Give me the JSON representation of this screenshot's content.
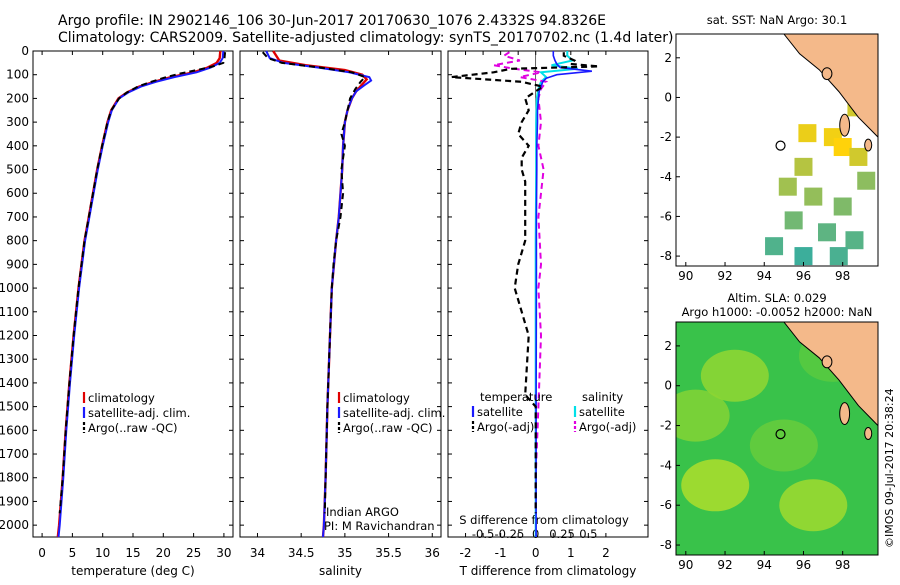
{
  "header": {
    "line1": "Argo profile: IN 2902146_106 30-Jun-2017 20170630_1076 2.4332S 94.8326E",
    "line2": "Climatology: CARS2009. Satellite-adjusted climatology: synTS_20170702.nc (1.4d later)"
  },
  "footer": {
    "imos": "©IMOS 09-Jul-2017 20:38:24"
  },
  "colors": {
    "climatology": "#e00000",
    "satellite": "#1a1aff",
    "argo": "#000000",
    "sal_satellite": "#00e0e8",
    "sal_argo": "#e000e0",
    "land": "#f4b98a"
  },
  "chart_data": [
    {
      "type": "line",
      "title": "",
      "xlabel": "temperature (deg C)",
      "ylabel": "",
      "xlim": [
        -1.5,
        31.5
      ],
      "ylim": [
        2050,
        0
      ],
      "xticks": [
        0,
        5,
        10,
        15,
        20,
        25,
        30
      ],
      "yticks": [
        0,
        100,
        200,
        300,
        400,
        500,
        600,
        700,
        800,
        900,
        1000,
        1100,
        1200,
        1300,
        1400,
        1500,
        1600,
        1700,
        1800,
        1900,
        2000
      ],
      "legend": {
        "position": "lower-right",
        "entries": [
          "climatology",
          "satellite-adj. clim.",
          "Argo(..raw -QC)"
        ]
      },
      "series": [
        {
          "name": "climatology",
          "depth": [
            0,
            30,
            50,
            70,
            90,
            110,
            130,
            150,
            175,
            200,
            250,
            300,
            400,
            500,
            600,
            700,
            800,
            900,
            1000,
            1200,
            1400,
            1600,
            1800,
            2000,
            2050
          ],
          "values": [
            29.4,
            29.3,
            28.8,
            27.3,
            25.0,
            21.3,
            18.5,
            16.0,
            14.0,
            12.6,
            11.4,
            10.8,
            9.9,
            9.1,
            8.4,
            7.7,
            7.0,
            6.5,
            6.0,
            5.2,
            4.5,
            3.9,
            3.4,
            2.8,
            2.6
          ]
        },
        {
          "name": "satellite-adj. clim.",
          "depth": [
            0,
            30,
            50,
            70,
            90,
            110,
            130,
            150,
            175,
            200,
            250,
            300,
            400,
            500,
            600,
            700,
            800,
            900,
            1000,
            1200,
            1400,
            1600,
            1800,
            2000,
            2050
          ],
          "values": [
            29.9,
            29.8,
            29.3,
            27.8,
            25.5,
            21.8,
            18.8,
            16.3,
            14.2,
            12.7,
            11.5,
            10.9,
            10.0,
            9.2,
            8.5,
            7.8,
            7.1,
            6.6,
            6.1,
            5.3,
            4.6,
            4.0,
            3.5,
            2.9,
            2.7
          ]
        },
        {
          "name": "Argo(..raw -QC)",
          "depth": [
            5,
            30,
            50,
            65,
            80,
            95,
            110,
            130,
            150,
            175,
            200,
            250,
            300,
            400,
            500,
            600,
            700,
            800,
            900,
            1000,
            1200,
            1400,
            1600,
            1800,
            1950
          ],
          "values": [
            30.2,
            30.1,
            29.9,
            28.2,
            25.6,
            22.8,
            20.5,
            18.0,
            15.8,
            14.0,
            12.7,
            11.4,
            10.8,
            9.9,
            9.1,
            8.4,
            7.7,
            7.0,
            6.5,
            6.0,
            5.2,
            4.5,
            3.9,
            3.4,
            2.9
          ]
        }
      ]
    },
    {
      "type": "line",
      "title": "",
      "xlabel": "salinity",
      "ylabel": "",
      "xlim": [
        33.8,
        36.1
      ],
      "ylim": [
        2050,
        0
      ],
      "xticks": [
        34,
        34.5,
        35,
        35.5,
        36
      ],
      "legend": {
        "position": "lower-right",
        "entries": [
          "climatology",
          "satellite-adj. clim.",
          "Argo(..raw -QC)"
        ]
      },
      "annotations": [
        "Indian ARGO",
        "PI: M Ravichandran"
      ],
      "series": [
        {
          "name": "climatology",
          "depth": [
            0,
            40,
            60,
            80,
            100,
            120,
            140,
            170,
            200,
            250,
            300,
            400,
            500,
            600,
            700,
            800,
            1000,
            1200,
            1500,
            1800,
            2000,
            2050
          ],
          "values": [
            34.18,
            34.25,
            34.55,
            35.0,
            35.2,
            35.25,
            35.2,
            35.13,
            35.08,
            35.03,
            35.0,
            34.98,
            34.97,
            34.95,
            34.93,
            34.9,
            34.85,
            34.83,
            34.8,
            34.78,
            34.76,
            34.75
          ]
        },
        {
          "name": "satellite-adj. clim.",
          "depth": [
            0,
            30,
            50,
            70,
            90,
            110,
            125,
            145,
            170,
            200,
            250,
            300,
            400,
            500,
            600,
            700,
            800,
            1000,
            1200,
            1500,
            1800,
            2000,
            2050
          ],
          "values": [
            34.1,
            34.14,
            34.3,
            34.7,
            35.05,
            35.28,
            35.3,
            35.22,
            35.13,
            35.08,
            35.03,
            35.0,
            34.98,
            34.97,
            34.95,
            34.93,
            34.9,
            34.85,
            34.83,
            34.8,
            34.78,
            34.76,
            34.75
          ]
        },
        {
          "name": "Argo(..raw -QC)",
          "depth": [
            5,
            30,
            50,
            70,
            90,
            110,
            130,
            160,
            200,
            250,
            300,
            350,
            400,
            500,
            600,
            700,
            800,
            900,
            1000,
            1200,
            1500,
            1800,
            1950
          ],
          "values": [
            34.06,
            34.12,
            34.28,
            34.72,
            35.08,
            35.23,
            35.18,
            35.12,
            35.06,
            35.03,
            35.0,
            34.96,
            35.0,
            34.96,
            34.98,
            34.95,
            34.9,
            34.87,
            34.85,
            34.83,
            34.8,
            34.78,
            34.77
          ]
        }
      ]
    },
    {
      "type": "line",
      "title": "",
      "xlabel": "T difference from climatology",
      "xlabel_top": "S difference from climatology",
      "xlim": [
        -2.5,
        3.2
      ],
      "xticks": [
        -2,
        -1.5,
        -1,
        -0.5,
        0,
        0.5,
        1,
        1.5,
        2
      ],
      "xtick_labels": [
        "-2",
        "",
        "-1",
        "",
        "0",
        "",
        "1",
        "",
        "2"
      ],
      "s_axis_ticks": [
        -0.5,
        -0.25,
        0,
        0.25,
        0.5
      ],
      "s_axis_labels": [
        "-0.5",
        "-0.25",
        "0",
        "0.25",
        "0.5"
      ],
      "ylim": [
        2050,
        0
      ],
      "legend": {
        "position": "lower",
        "temperature_title": "temperature",
        "salinity_title": "salinity",
        "temperature_entries": [
          "satellite",
          "Argo(-adj)"
        ],
        "salinity_entries": [
          "satellite",
          "Argo(-adj)"
        ]
      },
      "series": [
        {
          "name": "T satellite",
          "depth": [
            0,
            20,
            40,
            55,
            70,
            85,
            100,
            115,
            130,
            150,
            170,
            200,
            250,
            300,
            400,
            500,
            700,
            1000,
            1500,
            2050
          ],
          "values": [
            0.5,
            0.5,
            0.55,
            0.6,
            0.7,
            1.6,
            0.6,
            0.3,
            0.2,
            0.15,
            0.1,
            0.08,
            0.05,
            0.05,
            0.03,
            0.03,
            0.02,
            0.02,
            0.01,
            0.01
          ]
        },
        {
          "name": "T Argo(-adj)",
          "depth": [
            5,
            20,
            40,
            55,
            65,
            75,
            90,
            110,
            130,
            150,
            180,
            200,
            250,
            300,
            350,
            400,
            450,
            500,
            550,
            650,
            800,
            900,
            1000,
            1200,
            1450,
            1500,
            1700,
            1950
          ],
          "values": [
            0.8,
            0.8,
            1.1,
            1.0,
            1.8,
            -0.7,
            -1.2,
            -2.4,
            -0.4,
            0.2,
            -0.1,
            -0.3,
            -0.2,
            -0.4,
            -0.5,
            -0.2,
            -0.4,
            -0.4,
            -0.3,
            -0.3,
            -0.3,
            -0.5,
            -0.6,
            -0.2,
            -0.3,
            0.0,
            0.0,
            0.0
          ]
        },
        {
          "name": "S satellite",
          "depth": [
            0,
            20,
            40,
            60,
            75,
            90,
            110,
            130,
            160,
            200,
            300,
            500,
            800,
            1200,
            2050
          ],
          "values": [
            0.6,
            0.6,
            0.7,
            0.3,
            0.8,
            0.1,
            0.2,
            0.1,
            0.05,
            0.02,
            0.01,
            0.01,
            0.0,
            0.0,
            0.0
          ]
        },
        {
          "name": "S Argo(-adj)",
          "depth": [
            5,
            20,
            40,
            60,
            75,
            90,
            110,
            130,
            160,
            200,
            300,
            400,
            500,
            600,
            700,
            900,
            1000,
            1200,
            1500,
            1800,
            1950
          ],
          "values": [
            -0.5,
            -0.6,
            -0.3,
            -0.8,
            -0.4,
            0.1,
            -0.3,
            0.2,
            0.1,
            0.05,
            0.1,
            0.05,
            0.15,
            0.1,
            0.05,
            0.1,
            0.05,
            0.1,
            0.05,
            0.0,
            0.0
          ]
        }
      ]
    },
    {
      "type": "heatmap",
      "title": "sat. SST: NaN Argo: 30.1",
      "xlim": [
        89.5,
        99.8
      ],
      "ylim": [
        -8.5,
        3.2
      ],
      "xticks": [
        90,
        92,
        94,
        96,
        98
      ],
      "yticks": [
        -8,
        -6,
        -4,
        -2,
        0,
        2
      ],
      "argo_position": [
        94.83,
        -2.43
      ],
      "coast": [
        [
          95.0,
          3.2
        ],
        [
          95.8,
          2.2
        ],
        [
          96.8,
          1.4
        ],
        [
          97.8,
          0.3
        ],
        [
          98.8,
          -1.0
        ],
        [
          99.8,
          -2.0
        ]
      ],
      "islands": [
        {
          "center": [
            98.1,
            -1.4
          ],
          "radius": [
            0.25,
            0.55
          ]
        },
        {
          "center": [
            99.3,
            -2.4
          ],
          "radius": [
            0.18,
            0.3
          ]
        },
        {
          "center": [
            97.2,
            1.2
          ],
          "radius": [
            0.25,
            0.3
          ]
        }
      ],
      "cells": [
        {
          "lon": 99.0,
          "lat": 0.0,
          "value": 29.5
        },
        {
          "lon": 98.7,
          "lat": -0.5,
          "value": 29.0
        },
        {
          "lon": 96.2,
          "lat": -1.8,
          "value": 29.4
        },
        {
          "lon": 97.5,
          "lat": -2.0,
          "value": 29.5
        },
        {
          "lon": 98.0,
          "lat": -2.5,
          "value": 29.7
        },
        {
          "lon": 98.8,
          "lat": -3.0,
          "value": 29.0
        },
        {
          "lon": 96.0,
          "lat": -3.5,
          "value": 28.6
        },
        {
          "lon": 95.2,
          "lat": -4.5,
          "value": 28.3
        },
        {
          "lon": 96.5,
          "lat": -5.0,
          "value": 28.1
        },
        {
          "lon": 98.0,
          "lat": -5.5,
          "value": 27.8
        },
        {
          "lon": 99.2,
          "lat": -4.2,
          "value": 28.0
        },
        {
          "lon": 95.5,
          "lat": -6.2,
          "value": 27.6
        },
        {
          "lon": 97.2,
          "lat": -6.8,
          "value": 27.3
        },
        {
          "lon": 98.6,
          "lat": -7.2,
          "value": 27.2
        },
        {
          "lon": 94.5,
          "lat": -7.5,
          "value": 27.1
        },
        {
          "lon": 96.0,
          "lat": -8.0,
          "value": 26.8
        },
        {
          "lon": 97.8,
          "lat": -8.0,
          "value": 27.0
        }
      ]
    },
    {
      "type": "heatmap",
      "title_line1": "Altim. SLA: 0.029",
      "title_line2": "Argo h1000: -0.0052 h2000: NaN",
      "xlim": [
        89.5,
        99.8
      ],
      "ylim": [
        -8.5,
        3.2
      ],
      "xticks": [
        90,
        92,
        94,
        96,
        98
      ],
      "yticks": [
        -8,
        -6,
        -4,
        -2,
        0,
        2
      ],
      "argo_position": [
        94.83,
        -2.43
      ],
      "coast": [
        [
          95.0,
          3.2
        ],
        [
          95.8,
          2.2
        ],
        [
          96.8,
          1.4
        ],
        [
          97.8,
          0.3
        ],
        [
          98.8,
          -1.0
        ],
        [
          99.8,
          -2.0
        ]
      ],
      "islands": [
        {
          "center": [
            98.1,
            -1.4
          ],
          "radius": [
            0.25,
            0.55
          ]
        },
        {
          "center": [
            99.3,
            -2.4
          ],
          "radius": [
            0.18,
            0.3
          ]
        },
        {
          "center": [
            97.2,
            1.2
          ],
          "radius": [
            0.25,
            0.3
          ]
        }
      ],
      "blobs": [
        {
          "lon": 91.5,
          "lat": -5.0,
          "value": 0.08
        },
        {
          "lon": 92.5,
          "lat": 0.5,
          "value": 0.06
        },
        {
          "lon": 96.5,
          "lat": -6.0,
          "value": 0.07
        },
        {
          "lon": 95.0,
          "lat": -3.0,
          "value": 0.03
        },
        {
          "lon": 97.5,
          "lat": 1.5,
          "value": 0.02
        },
        {
          "lon": 90.5,
          "lat": -1.5,
          "value": 0.05
        }
      ]
    }
  ]
}
